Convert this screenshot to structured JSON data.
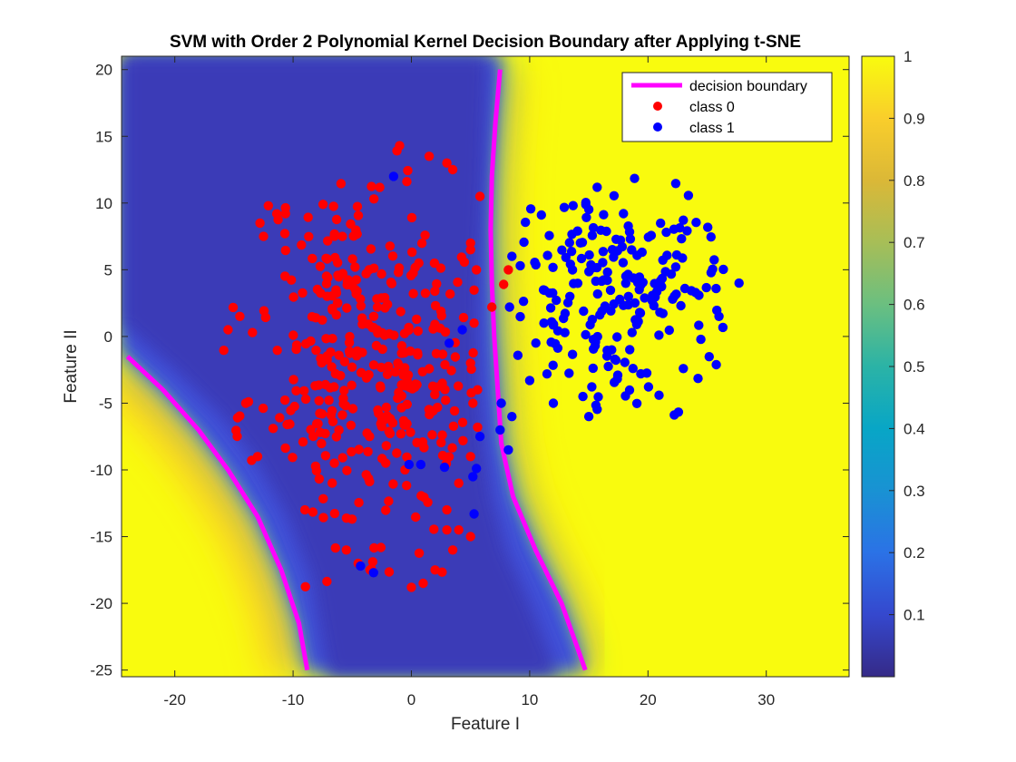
{
  "chart_data": {
    "type": "scatter",
    "title": "SVM with Order 2 Polynomial Kernel Decision Boundary after Applying t-SNE",
    "xlabel": "Feature I",
    "ylabel": "Feature II",
    "xlim": [
      -24.5,
      37
    ],
    "ylim": [
      -25.5,
      21
    ],
    "xticks": [
      -20,
      -10,
      0,
      10,
      20,
      30
    ],
    "xtick_labels": [
      "-20",
      "-10",
      "0",
      "10",
      "20",
      "30"
    ],
    "yticks": [
      -25,
      -20,
      -15,
      -10,
      -5,
      0,
      5,
      10,
      15,
      20
    ],
    "ytick_labels": [
      "-25",
      "-20",
      "-15",
      "-10",
      "-5",
      "0",
      "5",
      "10",
      "15",
      "20"
    ],
    "background": "filled probability surface, parula colormap (low = dark blue, high = yellow)",
    "colorbar": {
      "range": [
        0,
        1
      ],
      "ticks": [
        0.1,
        0.2,
        0.3,
        0.4,
        0.5,
        0.6,
        0.7,
        0.8,
        0.9,
        1
      ],
      "tick_labels": [
        "0.1",
        "0.2",
        "0.3",
        "0.4",
        "0.5",
        "0.6",
        "0.7",
        "0.8",
        "0.9",
        "1"
      ]
    },
    "legend_position": "top-right",
    "series": [
      {
        "name": "decision boundary",
        "kind": "line",
        "color": "#ff00ff",
        "segments": [
          [
            [
              -24,
              -1.5
            ],
            [
              -21,
              -4
            ],
            [
              -18,
              -7
            ],
            [
              -15.5,
              -10
            ],
            [
              -13,
              -13.5
            ],
            [
              -11,
              -17.5
            ],
            [
              -9.5,
              -21.5
            ],
            [
              -8.8,
              -25
            ]
          ],
          [
            [
              7.5,
              20
            ],
            [
              7.1,
              16
            ],
            [
              6.8,
              12
            ],
            [
              6.7,
              8
            ],
            [
              6.8,
              4
            ],
            [
              7,
              0
            ],
            [
              7.3,
              -4
            ],
            [
              7.6,
              -8
            ],
            [
              8.6,
              -12
            ],
            [
              10.5,
              -16
            ],
            [
              12.7,
              -20
            ],
            [
              14.7,
              -25
            ]
          ]
        ]
      },
      {
        "name": "class 0",
        "kind": "points",
        "color": "#ff0000",
        "cluster": {
          "cx": -3.5,
          "cy": -1.5,
          "sx": 5,
          "sy": 7,
          "n": 360,
          "seed": 11
        },
        "points": [
          [
            -1,
            14.3
          ],
          [
            1.5,
            13.5
          ],
          [
            3,
            13
          ],
          [
            3.5,
            12.5
          ],
          [
            5.8,
            10.5
          ],
          [
            5,
            7
          ],
          [
            5,
            6.5
          ],
          [
            5.5,
            5
          ],
          [
            8.2,
            5
          ],
          [
            7.8,
            3.9
          ],
          [
            6.8,
            2.2
          ],
          [
            5.3,
            1
          ],
          [
            5,
            -2
          ],
          [
            5.6,
            -4
          ],
          [
            5.2,
            -5
          ],
          [
            5.6,
            -6.8
          ],
          [
            5,
            -9
          ],
          [
            4,
            -11
          ],
          [
            3,
            -13
          ],
          [
            3,
            -14.5
          ],
          [
            4,
            -14.5
          ],
          [
            5,
            -15
          ],
          [
            3.5,
            -16
          ],
          [
            2,
            -17.5
          ],
          [
            1,
            -18.5
          ],
          [
            0,
            -18.8
          ],
          [
            -5.5,
            -16
          ],
          [
            -4.5,
            -17
          ],
          [
            -3.5,
            -17.5
          ],
          [
            -9,
            -13
          ],
          [
            -14,
            -5
          ],
          [
            -13,
            -9
          ],
          [
            -15.5,
            0.5
          ],
          [
            -14.5,
            1.5
          ],
          [
            -12.5,
            7.5
          ],
          [
            -12.8,
            8.5
          ]
        ]
      },
      {
        "name": "class 1",
        "kind": "points",
        "color": "#0000ff",
        "cluster": {
          "cx": 17,
          "cy": 3.5,
          "sx": 5,
          "sy": 4.3,
          "n": 210,
          "seed": 29
        },
        "points": [
          [
            -1.5,
            12
          ],
          [
            27.7,
            4
          ],
          [
            26,
            1.5
          ],
          [
            15,
            -6
          ],
          [
            14.5,
            -4.5
          ],
          [
            12,
            -5
          ],
          [
            10,
            -3.3
          ],
          [
            11.2,
            1
          ],
          [
            8.5,
            6
          ],
          [
            8.3,
            2.2
          ],
          [
            8.2,
            -8.5
          ],
          [
            8.5,
            -6
          ],
          [
            7.5,
            -7
          ],
          [
            7.6,
            -5
          ],
          [
            5.5,
            -9.9
          ],
          [
            5.8,
            -7.5
          ],
          [
            5.2,
            -10.5
          ],
          [
            5.3,
            -13.3
          ],
          [
            2.8,
            -9.8
          ],
          [
            0.8,
            -9.6
          ],
          [
            -0.2,
            -9.6
          ],
          [
            3.2,
            -0.5
          ],
          [
            4.3,
            0.5
          ],
          [
            -4.3,
            -17.2
          ],
          [
            -3.2,
            -17.7
          ]
        ]
      }
    ]
  },
  "legend": {
    "boundary_label": "decision boundary",
    "class0_label": "class 0",
    "class1_label": "class 1"
  },
  "colors": {
    "boundary": "#ff00ff",
    "class0": "#ff0000",
    "class1": "#0000ff"
  }
}
